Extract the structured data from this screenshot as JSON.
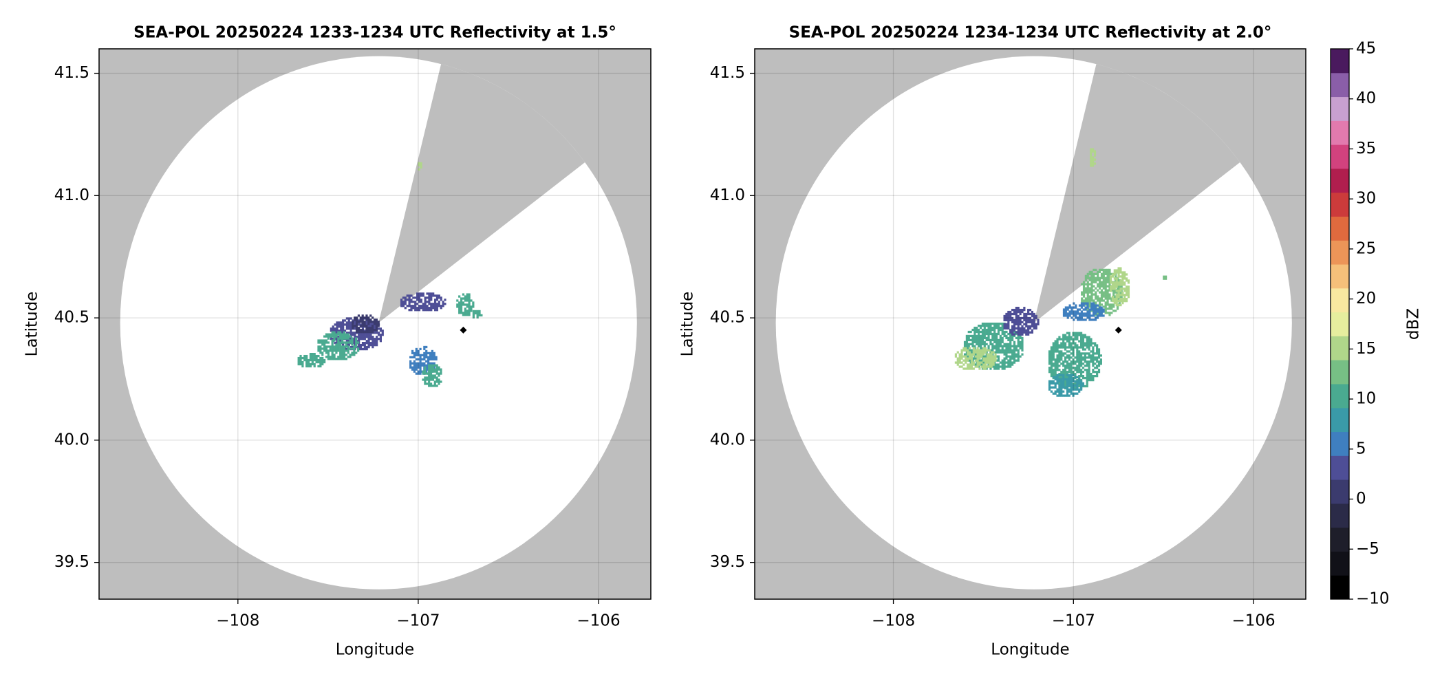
{
  "chart_data": [
    {
      "type": "ppi",
      "title": "SEA-POL 20250224 1233-1234 UTC Reflectivity at 1.5°",
      "xlabel": "Longitude",
      "ylabel": "Latitude",
      "xlim": [
        -108.77,
        -105.71
      ],
      "ylim": [
        39.35,
        41.6
      ],
      "xticks": [
        {
          "value": -108,
          "label": "−108"
        },
        {
          "value": -107,
          "label": "−107"
        },
        {
          "value": -106,
          "label": "−106"
        }
      ],
      "yticks": [
        39.5,
        {
          "value": 40,
          "label": "40.0"
        },
        40.5,
        {
          "value": 41,
          "label": "41.0"
        },
        41.5
      ],
      "grid": true,
      "radar": {
        "lon": -107.22,
        "lat": 40.48
      },
      "range_deg": 1.09,
      "blocked_azimuth": [
        14,
        53
      ],
      "marker": {
        "lon": -106.75,
        "lat": 40.45
      },
      "echoes": {
        "lon": [
          -107.35,
          -107.45,
          -107.6,
          -107.3,
          -106.98,
          -106.93,
          -106.98,
          -106.75,
          -106.68,
          -107.0
        ],
        "lat": [
          40.43,
          40.38,
          40.32,
          40.47,
          40.32,
          40.26,
          40.56,
          40.55,
          40.51,
          41.12
        ],
        "rx": [
          0.15,
          0.12,
          0.08,
          0.08,
          0.08,
          0.06,
          0.13,
          0.05,
          0.03,
          0.012
        ],
        "ry": [
          0.07,
          0.06,
          0.03,
          0.04,
          0.06,
          0.05,
          0.04,
          0.05,
          0.02,
          0.025
        ],
        "dbz": [
          3,
          10,
          10,
          0,
          5,
          10,
          2,
          10,
          10,
          15
        ]
      }
    },
    {
      "type": "ppi",
      "title": "SEA-POL 20250224 1234-1234 UTC Reflectivity at 2.0°",
      "xlabel": "Longitude",
      "ylabel": "Latitude",
      "xlim": [
        -108.77,
        -105.71
      ],
      "ylim": [
        39.35,
        41.6
      ],
      "xticks": [
        {
          "value": -108,
          "label": "−108"
        },
        {
          "value": -107,
          "label": "−107"
        },
        {
          "value": -106,
          "label": "−106"
        }
      ],
      "yticks": [
        39.5,
        {
          "value": 40,
          "label": "40.0"
        },
        40.5,
        {
          "value": 41,
          "label": "41.0"
        },
        41.5
      ],
      "grid": true,
      "radar": {
        "lon": -107.22,
        "lat": 40.48
      },
      "range_deg": 1.09,
      "blocked_azimuth": [
        14,
        53
      ],
      "marker": {
        "lon": -106.75,
        "lat": 40.45
      },
      "echoes": {
        "lon": [
          -107.45,
          -107.55,
          -107.3,
          -107.0,
          -107.05,
          -106.85,
          -106.75,
          -106.95,
          -106.9,
          -106.5
        ],
        "lat": [
          40.38,
          40.33,
          40.48,
          40.32,
          40.22,
          40.6,
          40.62,
          40.52,
          41.15,
          40.66
        ],
        "rx": [
          0.17,
          0.12,
          0.1,
          0.15,
          0.1,
          0.12,
          0.06,
          0.12,
          0.02,
          0.015
        ],
        "ry": [
          0.1,
          0.05,
          0.06,
          0.12,
          0.05,
          0.1,
          0.08,
          0.04,
          0.04,
          0.012
        ],
        "dbz": [
          10,
          15,
          3,
          10,
          8,
          12,
          15,
          5,
          15,
          12
        ]
      }
    },
    {
      "type": "colorbar",
      "label": "dBZ",
      "clim": [
        -10,
        45
      ],
      "ticks": [
        {
          "value": -10,
          "label": "−10"
        },
        {
          "value": -5,
          "label": "−5"
        },
        0,
        5,
        10,
        15,
        20,
        25,
        30,
        35,
        40,
        45
      ],
      "colors": [
        "#000000",
        "#111118",
        "#1e1e2a",
        "#2b2b48",
        "#3b3b6e",
        "#4e4e96",
        "#3f7fbf",
        "#3a9aa8",
        "#4aaa90",
        "#77bf85",
        "#b0d68a",
        "#e6ee9e",
        "#f8e8a0",
        "#f5c07a",
        "#ec9558",
        "#e06a3e",
        "#cc3b3b",
        "#b01e4e",
        "#d2427e",
        "#e27aae",
        "#c8a0d0",
        "#8a5ea8",
        "#4a1a5e"
      ]
    }
  ]
}
